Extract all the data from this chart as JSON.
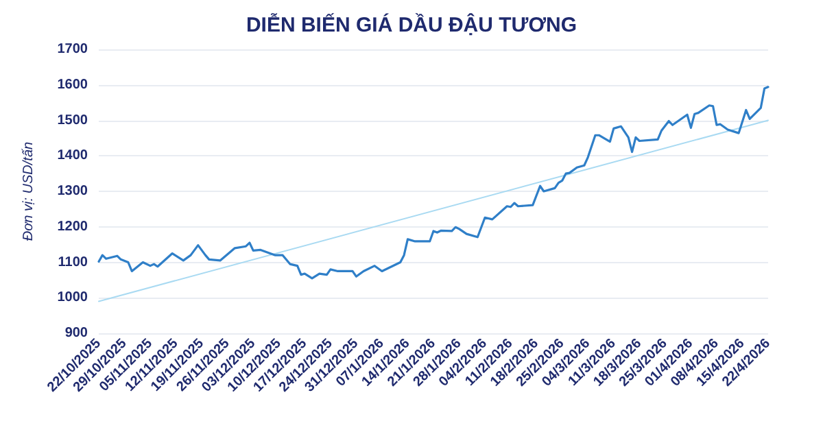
{
  "chart_data": {
    "type": "line",
    "title": "DIỄN BIẾN GIÁ DẦU ĐẬU TƯƠNG",
    "ylabel": "Đơn vị: USD/tấn",
    "x": [
      "2025-10-22",
      "2025-10-23",
      "2025-10-24",
      "2025-10-27",
      "2025-10-28",
      "2025-10-30",
      "2025-10-31",
      "2025-11-03",
      "2025-11-05",
      "2025-11-06",
      "2025-11-07",
      "2025-11-11",
      "2025-11-14",
      "2025-11-16",
      "2025-11-18",
      "2025-11-20",
      "2025-11-21",
      "2025-11-24",
      "2025-11-28",
      "2025-12-01",
      "2025-12-02",
      "2025-12-03",
      "2025-12-05",
      "2025-12-09",
      "2025-12-11",
      "2025-12-13",
      "2025-12-15",
      "2025-12-16",
      "2025-12-17",
      "2025-12-19",
      "2025-12-21",
      "2025-12-23",
      "2025-12-24",
      "2025-12-26",
      "2025-12-30",
      "2025-12-31",
      "2026-01-02",
      "2026-01-05",
      "2026-01-07",
      "2026-01-12",
      "2026-01-13",
      "2026-01-14",
      "2026-01-16",
      "2026-01-20",
      "2026-01-21",
      "2026-01-22",
      "2026-01-23",
      "2026-01-26",
      "2026-01-27",
      "2026-01-28",
      "2026-01-30",
      "2026-02-02",
      "2026-02-04",
      "2026-02-06",
      "2026-02-10",
      "2026-02-11",
      "2026-02-12",
      "2026-02-13",
      "2026-02-17",
      "2026-02-19",
      "2026-02-20",
      "2026-02-23",
      "2026-02-24",
      "2026-02-25",
      "2026-02-26",
      "2026-02-27",
      "2026-03-01",
      "2026-03-03",
      "2026-03-04",
      "2026-03-06",
      "2026-03-07",
      "2026-03-10",
      "2026-03-11",
      "2026-03-13",
      "2026-03-15",
      "2026-03-16",
      "2026-03-17",
      "2026-03-18",
      "2026-03-23",
      "2026-03-24",
      "2026-03-26",
      "2026-03-27",
      "2026-03-31",
      "2026-04-01",
      "2026-04-02",
      "2026-04-03",
      "2026-04-06",
      "2026-04-07",
      "2026-04-08",
      "2026-04-09",
      "2026-04-11",
      "2026-04-14",
      "2026-04-16",
      "2026-04-17",
      "2026-04-20",
      "2026-04-21",
      "2026-04-22"
    ],
    "series": [
      {
        "color": "#2f7fc8",
        "values": [
          1102,
          1120,
          1110,
          1118,
          1108,
          1100,
          1075,
          1100,
          1090,
          1095,
          1088,
          1125,
          1105,
          1120,
          1148,
          1120,
          1108,
          1105,
          1140,
          1145,
          1155,
          1133,
          1135,
          1120,
          1120,
          1095,
          1090,
          1065,
          1068,
          1055,
          1068,
          1065,
          1080,
          1075,
          1075,
          1060,
          1075,
          1090,
          1075,
          1100,
          1120,
          1165,
          1159,
          1159,
          1188,
          1184,
          1189,
          1188,
          1199,
          1194,
          1180,
          1171,
          1226,
          1221,
          1258,
          1256,
          1267,
          1258,
          1261,
          1315,
          1300,
          1309,
          1324,
          1330,
          1350,
          1352,
          1367,
          1373,
          1396,
          1458,
          1458,
          1440,
          1477,
          1483,
          1452,
          1411,
          1452,
          1442,
          1446,
          1471,
          1498,
          1487,
          1516,
          1479,
          1518,
          1521,
          1542,
          1540,
          1487,
          1489,
          1474,
          1464,
          1529,
          1504,
          1535,
          1590,
          1594
        ]
      },
      {
        "type": "line",
        "color": "#a9daf2",
        "x": [
          "2025-10-22",
          "2026-04-22"
        ],
        "values": [
          990,
          1500
        ]
      }
    ],
    "xlim": [
      "2025-10-22",
      "2026-04-22"
    ],
    "xticks": [
      {
        "value": "2025-10-22",
        "label": "22/10/2025"
      },
      {
        "value": "2025-10-29",
        "label": "29/10/2025"
      },
      {
        "value": "2025-11-05",
        "label": "05/11/2025"
      },
      {
        "value": "2025-11-12",
        "label": "12/11/2025"
      },
      {
        "value": "2025-11-19",
        "label": "19/11/2025"
      },
      {
        "value": "2025-11-26",
        "label": "26/11/2025"
      },
      {
        "value": "2025-12-03",
        "label": "03/12/2025"
      },
      {
        "value": "2025-12-10",
        "label": "10/12/2025"
      },
      {
        "value": "2025-12-17",
        "label": "17/12/2025"
      },
      {
        "value": "2025-12-24",
        "label": "24/12/2025"
      },
      {
        "value": "2025-12-31",
        "label": "31/12/2025"
      },
      {
        "value": "2026-01-07",
        "label": "07/1/2026"
      },
      {
        "value": "2026-01-14",
        "label": "14/1/2026"
      },
      {
        "value": "2026-01-21",
        "label": "21/1/2026"
      },
      {
        "value": "2026-01-28",
        "label": "28/1/2026"
      },
      {
        "value": "2026-02-04",
        "label": "04/2/2026"
      },
      {
        "value": "2026-02-11",
        "label": "11/2/2026"
      },
      {
        "value": "2026-02-18",
        "label": "18/2/2026"
      },
      {
        "value": "2026-02-25",
        "label": "25/2/2026"
      },
      {
        "value": "2026-03-04",
        "label": "04/3/2026"
      },
      {
        "value": "2026-03-11",
        "label": "11/3/2026"
      },
      {
        "value": "2026-03-18",
        "label": "18/3/2026"
      },
      {
        "value": "2026-03-25",
        "label": "25/3/2026"
      },
      {
        "value": "2026-04-01",
        "label": "01/4/2026"
      },
      {
        "value": "2026-04-08",
        "label": "08/4/2026"
      },
      {
        "value": "2026-04-15",
        "label": "15/4/2026"
      },
      {
        "value": "2026-04-22",
        "label": "22/4/2026"
      }
    ],
    "ylim": [
      900,
      1700
    ],
    "yticks": [
      900,
      1000,
      1100,
      1200,
      1300,
      1400,
      1500,
      1600,
      1700
    ],
    "grid": "y",
    "marker": "none",
    "line_style": "solid"
  }
}
